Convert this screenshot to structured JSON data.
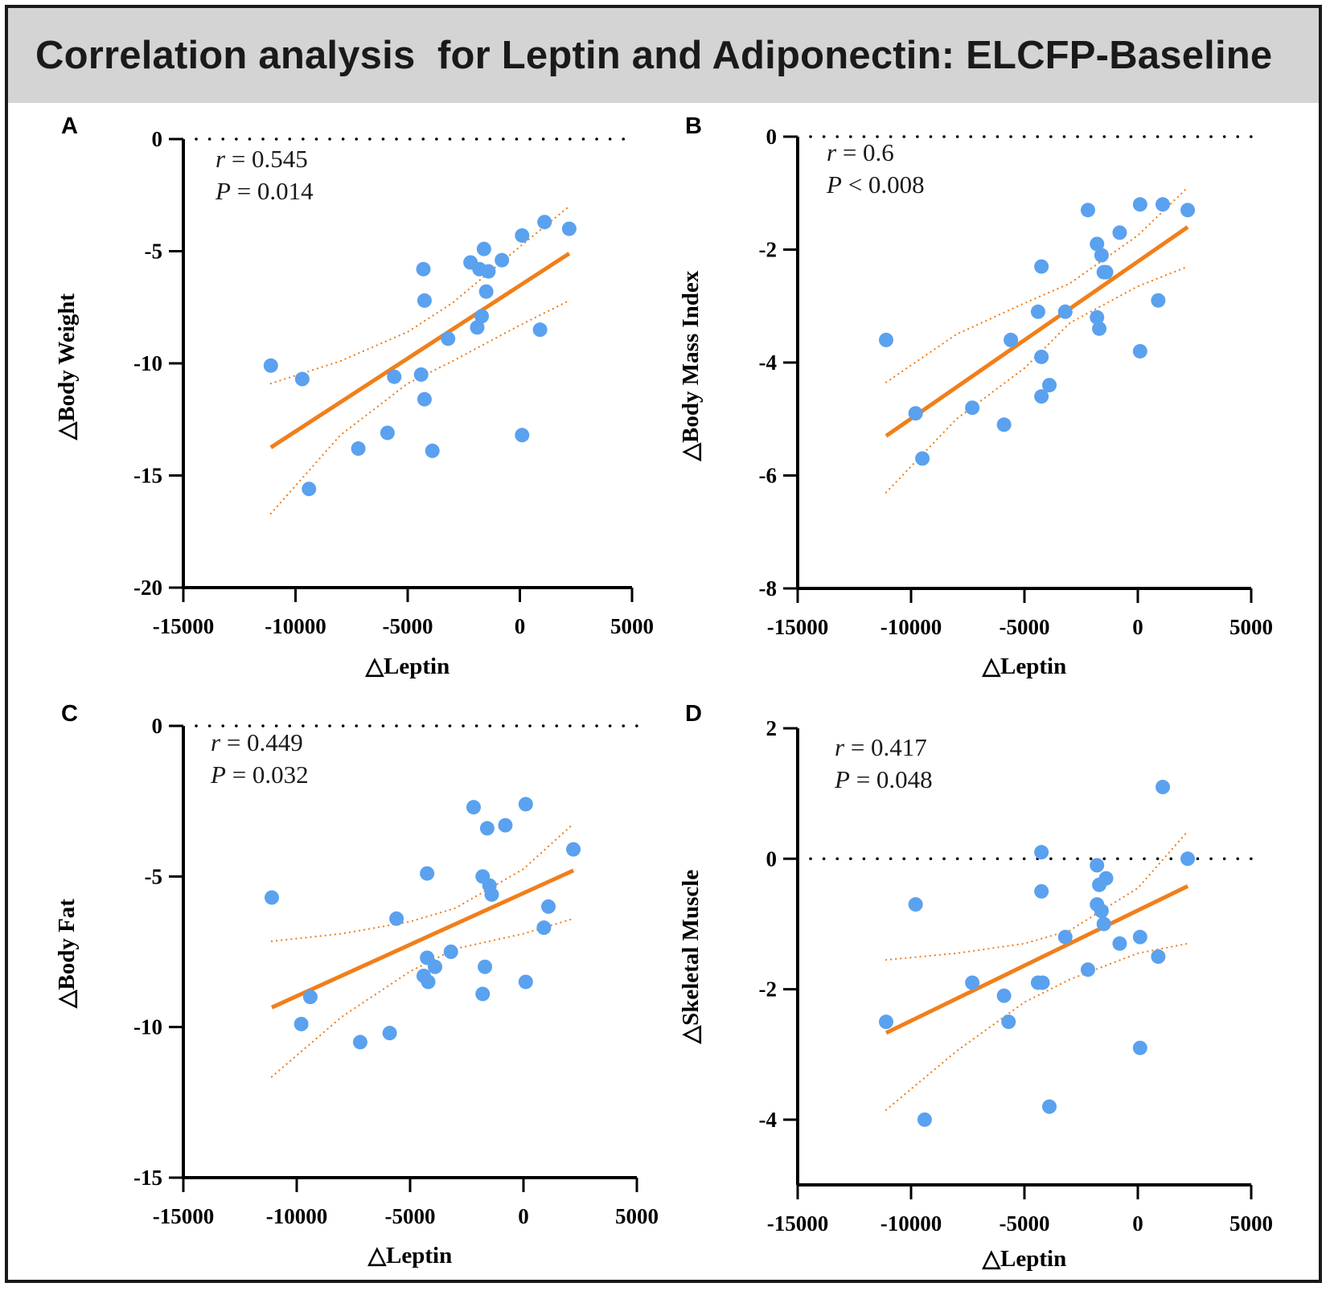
{
  "title": "Correlation analysis  for Leptin and Adiponectin: ELCFP-Baseline",
  "colors": {
    "points": "#5aa1ef",
    "regression": "#f07f1b",
    "title_bg": "#d4d4d4"
  },
  "chart_data": [
    {
      "panel": "A",
      "type": "scatter",
      "xlabel": "△Leptin",
      "ylabel": "△Body Weight",
      "xlim": [
        -15000,
        5000
      ],
      "ylim": [
        -20,
        0
      ],
      "xticks": [
        -15000,
        -10000,
        -5000,
        0,
        5000
      ],
      "yticks": [
        -20,
        -15,
        -10,
        -5,
        0
      ],
      "xtick_labels": [
        "-15000",
        "-10000",
        "-5000",
        "0",
        "5000"
      ],
      "ytick_labels": [
        "-20",
        "-15",
        "-10",
        "-5",
        "0"
      ],
      "zero_line": 0,
      "stats": {
        "r_label": "r",
        "r_text": " = 0.545",
        "p_label": "P",
        "p_text": " = 0.014"
      },
      "regression": {
        "x": [
          -11100,
          2200
        ],
        "y": [
          -13.75,
          -5.1
        ]
      },
      "ci_upper": {
        "x": [
          -11100,
          -8000,
          -5000,
          -3000,
          0,
          2200
        ],
        "y": [
          -10.9,
          -9.9,
          -8.6,
          -7.3,
          -4.8,
          -3.0
        ]
      },
      "ci_lower": {
        "x": [
          -11100,
          -8000,
          -5000,
          -3000,
          0,
          2200
        ],
        "y": [
          -16.7,
          -13.2,
          -10.9,
          -9.9,
          -8.3,
          -7.2
        ]
      },
      "points": [
        {
          "x": -11100,
          "y": -10.1
        },
        {
          "x": -9700,
          "y": -10.7
        },
        {
          "x": -9400,
          "y": -15.6
        },
        {
          "x": -7200,
          "y": -13.8
        },
        {
          "x": -5900,
          "y": -13.1
        },
        {
          "x": -5600,
          "y": -10.6
        },
        {
          "x": -4400,
          "y": -10.5
        },
        {
          "x": -4300,
          "y": -5.8
        },
        {
          "x": -4250,
          "y": -7.2
        },
        {
          "x": -4250,
          "y": -11.6
        },
        {
          "x": -3900,
          "y": -13.9
        },
        {
          "x": -3200,
          "y": -8.9
        },
        {
          "x": -2200,
          "y": -5.5
        },
        {
          "x": -1800,
          "y": -5.8
        },
        {
          "x": -1900,
          "y": -8.4
        },
        {
          "x": -1700,
          "y": -7.9
        },
        {
          "x": -1600,
          "y": -4.9
        },
        {
          "x": -1500,
          "y": -6.8
        },
        {
          "x": -1400,
          "y": -5.9
        },
        {
          "x": -800,
          "y": -5.4
        },
        {
          "x": 100,
          "y": -4.3
        },
        {
          "x": 100,
          "y": -13.2
        },
        {
          "x": 900,
          "y": -8.5
        },
        {
          "x": 1100,
          "y": -3.7
        },
        {
          "x": 2200,
          "y": -4.0
        }
      ]
    },
    {
      "panel": "B",
      "type": "scatter",
      "xlabel": "△Leptin",
      "ylabel": "△Body Mass Index",
      "xlim": [
        -15000,
        5000
      ],
      "ylim": [
        -8,
        0
      ],
      "xticks": [
        -15000,
        -10000,
        -5000,
        0,
        5000
      ],
      "yticks": [
        -8,
        -6,
        -4,
        -2,
        0
      ],
      "xtick_labels": [
        "-15000",
        "-10000",
        "-5000",
        "0",
        "5000"
      ],
      "ytick_labels": [
        "-8",
        "-6",
        "-4",
        "-2",
        "0"
      ],
      "zero_line": 0,
      "stats": {
        "r_label": "r",
        "r_text": " = 0.6",
        "p_label": "P",
        "p_text": " < 0.008"
      },
      "regression": {
        "x": [
          -11100,
          2200
        ],
        "y": [
          -5.3,
          -1.6
        ]
      },
      "ci_upper": {
        "x": [
          -11100,
          -8000,
          -5000,
          -3000,
          0,
          2200
        ],
        "y": [
          -4.35,
          -3.5,
          -2.95,
          -2.6,
          -1.75,
          -0.9
        ]
      },
      "ci_lower": {
        "x": [
          -11100,
          -8000,
          -5000,
          -3000,
          0,
          2200
        ],
        "y": [
          -6.3,
          -5.0,
          -4.1,
          -3.3,
          -2.65,
          -2.3
        ]
      },
      "points": [
        {
          "x": -11100,
          "y": -3.6
        },
        {
          "x": -9800,
          "y": -4.9
        },
        {
          "x": -9500,
          "y": -5.7
        },
        {
          "x": -7300,
          "y": -4.8
        },
        {
          "x": -5900,
          "y": -5.1
        },
        {
          "x": -5600,
          "y": -3.6
        },
        {
          "x": -4400,
          "y": -3.1
        },
        {
          "x": -4250,
          "y": -2.3
        },
        {
          "x": -4250,
          "y": -3.9
        },
        {
          "x": -4250,
          "y": -4.6
        },
        {
          "x": -3900,
          "y": -4.4
        },
        {
          "x": -3200,
          "y": -3.1
        },
        {
          "x": -2200,
          "y": -1.3
        },
        {
          "x": -1800,
          "y": -1.9
        },
        {
          "x": -1800,
          "y": -3.2
        },
        {
          "x": -1700,
          "y": -3.4
        },
        {
          "x": -1600,
          "y": -2.1
        },
        {
          "x": -1500,
          "y": -2.4
        },
        {
          "x": -1400,
          "y": -2.4
        },
        {
          "x": -800,
          "y": -1.7
        },
        {
          "x": 100,
          "y": -1.2
        },
        {
          "x": 100,
          "y": -3.8
        },
        {
          "x": 900,
          "y": -2.9
        },
        {
          "x": 1100,
          "y": -1.2
        },
        {
          "x": 2200,
          "y": -1.3
        }
      ]
    },
    {
      "panel": "C",
      "type": "scatter",
      "xlabel": "△Leptin",
      "ylabel": "△Body Fat",
      "xlim": [
        -15000,
        5000
      ],
      "ylim": [
        -15,
        0
      ],
      "xticks": [
        -15000,
        -10000,
        -5000,
        0,
        5000
      ],
      "yticks": [
        -15,
        -10,
        -5,
        0
      ],
      "xtick_labels": [
        "-15000",
        "-10000",
        "-5000",
        "0",
        "5000"
      ],
      "ytick_labels": [
        "-15",
        "-10",
        "-5",
        "0"
      ],
      "zero_line": 0,
      "stats": {
        "r_label": "r",
        "r_text": " = 0.449",
        "p_label": "P",
        "p_text": " = 0.032"
      },
      "regression": {
        "x": [
          -11100,
          2200
        ],
        "y": [
          -9.35,
          -4.8
        ]
      },
      "ci_upper": {
        "x": [
          -11100,
          -8000,
          -5000,
          -3000,
          0,
          2200
        ],
        "y": [
          -7.15,
          -6.9,
          -6.5,
          -6.05,
          -4.75,
          -3.25
        ]
      },
      "ci_lower": {
        "x": [
          -11100,
          -8000,
          -5000,
          -3000,
          0,
          2200
        ],
        "y": [
          -11.65,
          -9.65,
          -8.15,
          -7.4,
          -6.9,
          -6.4
        ]
      },
      "points": [
        {
          "x": -11100,
          "y": -5.7
        },
        {
          "x": -9800,
          "y": -9.9
        },
        {
          "x": -9400,
          "y": -9.0
        },
        {
          "x": -7200,
          "y": -10.5
        },
        {
          "x": -5900,
          "y": -10.2
        },
        {
          "x": -5600,
          "y": -6.4
        },
        {
          "x": -4400,
          "y": -8.3
        },
        {
          "x": -4250,
          "y": -4.9
        },
        {
          "x": -4250,
          "y": -7.7
        },
        {
          "x": -4200,
          "y": -8.5
        },
        {
          "x": -3900,
          "y": -8.0
        },
        {
          "x": -3200,
          "y": -7.5
        },
        {
          "x": -2200,
          "y": -2.7
        },
        {
          "x": -1800,
          "y": -5.0
        },
        {
          "x": -1800,
          "y": -8.9
        },
        {
          "x": -1700,
          "y": -8.0
        },
        {
          "x": -1600,
          "y": -3.4
        },
        {
          "x": -1500,
          "y": -5.3
        },
        {
          "x": -1400,
          "y": -5.6
        },
        {
          "x": -800,
          "y": -3.3
        },
        {
          "x": 100,
          "y": -2.6
        },
        {
          "x": 100,
          "y": -8.5
        },
        {
          "x": 900,
          "y": -6.7
        },
        {
          "x": 1100,
          "y": -6.0
        },
        {
          "x": 2200,
          "y": -4.1
        }
      ]
    },
    {
      "panel": "D",
      "type": "scatter",
      "xlabel": "△Leptin",
      "ylabel": "△Skeletal Muscle",
      "xlim": [
        -15000,
        5000
      ],
      "ylim": [
        -5,
        2
      ],
      "xticks": [
        -15000,
        -10000,
        -5000,
        0,
        5000
      ],
      "yticks": [
        -4,
        -2,
        0,
        2
      ],
      "xtick_labels": [
        "-15000",
        "-10000",
        "-5000",
        "0",
        "5000"
      ],
      "ytick_labels": [
        "-4",
        "-2",
        "0",
        "2"
      ],
      "zero_line": 0,
      "stats": {
        "r_label": "r",
        "r_text": " = 0.417",
        "p_label": "P",
        "p_text": " = 0.048"
      },
      "regression": {
        "x": [
          -11100,
          2200
        ],
        "y": [
          -2.67,
          -0.42
        ]
      },
      "ci_upper": {
        "x": [
          -11100,
          -8000,
          -5000,
          -3000,
          0,
          2200
        ],
        "y": [
          -1.55,
          -1.45,
          -1.3,
          -1.1,
          -0.45,
          0.42
        ]
      },
      "ci_lower": {
        "x": [
          -11100,
          -8000,
          -5000,
          -3000,
          0,
          2200
        ],
        "y": [
          -3.85,
          -2.95,
          -2.2,
          -1.85,
          -1.45,
          -1.3
        ]
      },
      "points": [
        {
          "x": -11100,
          "y": -2.5
        },
        {
          "x": -9800,
          "y": -0.7
        },
        {
          "x": -9400,
          "y": -4.0
        },
        {
          "x": -7300,
          "y": -1.9
        },
        {
          "x": -5900,
          "y": -2.1
        },
        {
          "x": -5700,
          "y": -2.5
        },
        {
          "x": -4400,
          "y": -1.9
        },
        {
          "x": -4250,
          "y": 0.1
        },
        {
          "x": -4250,
          "y": -0.5
        },
        {
          "x": -4200,
          "y": -1.9
        },
        {
          "x": -3900,
          "y": -3.8
        },
        {
          "x": -3200,
          "y": -1.2
        },
        {
          "x": -2200,
          "y": -1.7
        },
        {
          "x": -1800,
          "y": -0.1
        },
        {
          "x": -1800,
          "y": -0.7
        },
        {
          "x": -1700,
          "y": -0.4
        },
        {
          "x": -1600,
          "y": -0.8
        },
        {
          "x": -1500,
          "y": -1.0
        },
        {
          "x": -1400,
          "y": -0.3
        },
        {
          "x": -800,
          "y": -1.3
        },
        {
          "x": 100,
          "y": -1.2
        },
        {
          "x": 100,
          "y": -2.9
        },
        {
          "x": 900,
          "y": -1.5
        },
        {
          "x": 1100,
          "y": 1.1
        },
        {
          "x": 2200,
          "y": 0.0
        }
      ]
    }
  ]
}
